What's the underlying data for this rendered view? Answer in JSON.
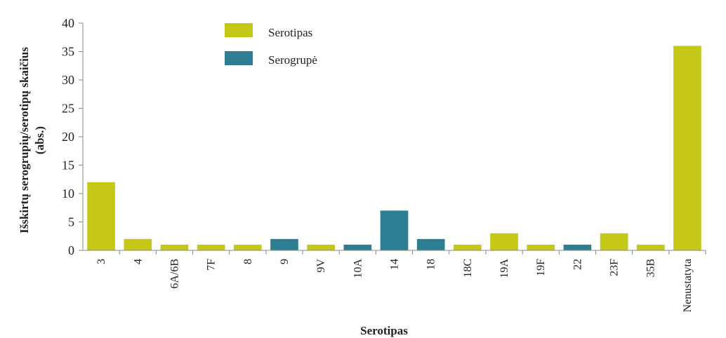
{
  "chart_data": {
    "type": "bar",
    "title": "",
    "xlabel": "Serotipas",
    "ylabel_line1": "Išskirtų serogrupių/serotipų skaičius",
    "ylabel_line2": "(abs.)",
    "ylim": [
      0,
      40
    ],
    "ytick_step": 5,
    "yticks": [
      "0",
      "5",
      "10",
      "15",
      "20",
      "25",
      "30",
      "35",
      "40"
    ],
    "categories": [
      "3",
      "4",
      "6A/6B",
      "7F",
      "8",
      "9",
      "9V",
      "10A",
      "14",
      "18",
      "18C",
      "19A",
      "19F",
      "22",
      "23F",
      "35B",
      "Nenustatyta"
    ],
    "values": [
      12,
      2,
      1,
      1,
      1,
      2,
      1,
      1,
      7,
      2,
      1,
      3,
      1,
      1,
      3,
      1,
      36
    ],
    "kinds": [
      "Serotipas",
      "Serotipas",
      "Serotipas",
      "Serotipas",
      "Serotipas",
      "Serogrupė",
      "Serotipas",
      "Serogrupė",
      "Serogrupė",
      "Serogrupė",
      "Serotipas",
      "Serotipas",
      "Serotipas",
      "Serogrupė",
      "Serotipas",
      "Serotipas",
      "Serotipas"
    ],
    "series": [
      {
        "name": "Serotipas",
        "color": "#c5c817"
      },
      {
        "name": "Serogrupė",
        "color": "#2d7e92"
      }
    ],
    "legend_position": "top-center",
    "grid": false
  }
}
